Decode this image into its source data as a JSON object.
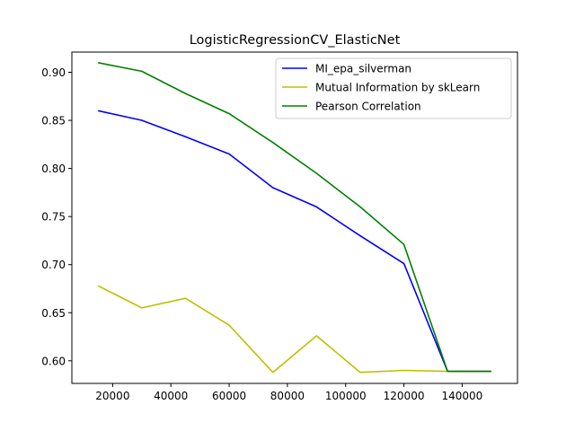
{
  "chart_data": {
    "type": "line",
    "title": "LogisticRegressionCV_ElasticNet",
    "xlabel": "",
    "ylabel": "",
    "x": [
      15000,
      30000,
      45000,
      60000,
      75000,
      90000,
      105000,
      120000,
      135000,
      150000
    ],
    "xlim": [
      6000,
      159000
    ],
    "ylim": [
      0.5765,
      0.921
    ],
    "xticks": [
      20000,
      40000,
      60000,
      80000,
      100000,
      120000,
      140000
    ],
    "xtick_labels": [
      "20000",
      "40000",
      "60000",
      "80000",
      "100000",
      "120000",
      "140000"
    ],
    "yticks": [
      0.6,
      0.65,
      0.7,
      0.75,
      0.8,
      0.85,
      0.9
    ],
    "ytick_labels": [
      "0.60",
      "0.65",
      "0.70",
      "0.75",
      "0.80",
      "0.85",
      "0.90"
    ],
    "grid": false,
    "legend_position": "top-right",
    "series": [
      {
        "name": "MI_epa_silverman",
        "color": "#0000ff",
        "values": [
          0.86,
          0.85,
          0.833,
          0.815,
          0.78,
          0.76,
          0.73,
          0.701,
          0.589,
          0.589
        ]
      },
      {
        "name": "Mutual Information by skLearn",
        "color": "#bfbf00",
        "values": [
          0.678,
          0.655,
          0.665,
          0.637,
          0.588,
          0.626,
          0.588,
          0.59,
          0.589,
          0.589
        ]
      },
      {
        "name": "Pearson Correlation",
        "color": "#008000",
        "values": [
          0.91,
          0.901,
          0.878,
          0.857,
          0.827,
          0.795,
          0.76,
          0.721,
          0.589,
          0.589
        ]
      }
    ]
  }
}
